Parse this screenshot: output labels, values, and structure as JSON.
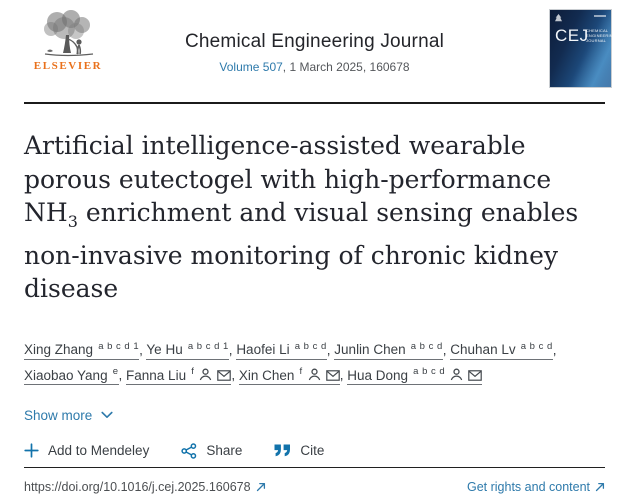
{
  "header": {
    "publisher_wordmark": "ELSEVIER",
    "journal_name": "Chemical Engineering Journal",
    "volume_link": "Volume 507",
    "issue_suffix": ", 1 March 2025, 160678",
    "cover": {
      "initials": "CEJ",
      "small_title": "Chemical Engineering Journal"
    }
  },
  "article": {
    "title_lines": [
      {
        "text": "Artificial intelligence-assisted wearable"
      },
      {
        "text": "porous eutectogel with high-performance"
      },
      {
        "pre": "NH",
        "sub": "3",
        "text": " enrichment and visual sensing enables"
      },
      {
        "text": "non-invasive monitoring of chronic kidney"
      },
      {
        "text": "disease"
      }
    ]
  },
  "authors": [
    {
      "name": "Xing Zhang",
      "sup": "a b c d 1",
      "person": false,
      "mail": false,
      "break_after": false
    },
    {
      "name": "Ye Hu",
      "sup": "a b c d 1",
      "person": false,
      "mail": false,
      "break_after": false
    },
    {
      "name": "Haofei Li",
      "sup": "a b c d",
      "person": false,
      "mail": false,
      "break_after": false
    },
    {
      "name": "Junlin Chen",
      "sup": "a b c d",
      "person": false,
      "mail": false,
      "break_after": false
    },
    {
      "name": "Chuhan Lv",
      "sup": "a b c d",
      "person": false,
      "mail": false,
      "break_after": true
    },
    {
      "name": "Xiaobao Yang",
      "sup": "e",
      "person": false,
      "mail": false,
      "break_after": false
    },
    {
      "name": "Fanna Liu",
      "sup": "f",
      "person": true,
      "mail": true,
      "break_after": false
    },
    {
      "name": "Xin Chen",
      "sup": "f",
      "person": true,
      "mail": true,
      "break_after": false
    },
    {
      "name": "Hua Dong",
      "sup": "a b c d",
      "person": true,
      "mail": true,
      "break_after": false
    }
  ],
  "show_more_label": "Show more",
  "actions": {
    "mendeley_label": "Add to Mendeley",
    "share_label": "Share",
    "cite_label": "Cite"
  },
  "footer": {
    "doi": "https://doi.org/10.1016/j.cej.2025.160678",
    "rights_label": "Get rights and content"
  },
  "colors": {
    "link_blue": "#2e7aab",
    "icon_blue": "#1273ab",
    "elsevier_orange": "#e9711c",
    "title_text": "#23252d",
    "gray_text": "#54575b",
    "rule_dark": "#1b1b1b"
  }
}
